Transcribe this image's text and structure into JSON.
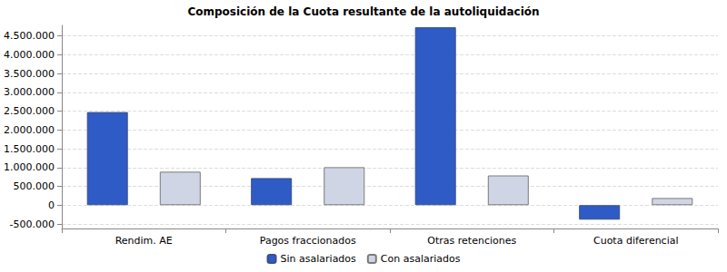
{
  "chart_data": {
    "type": "bar",
    "title": "Composición de la Cuota resultante de la autoliquidación",
    "categories": [
      "Rendim. AE",
      "Pagos fraccionados",
      "Otras retenciones",
      "Cuota diferencial"
    ],
    "series": [
      {
        "name": "Sin asalariados",
        "color": "#2f5bc6",
        "values": [
          2475000,
          720000,
          4730000,
          -385000
        ]
      },
      {
        "name": "Con asalariados",
        "color": "#d0d5e6",
        "values": [
          890000,
          1010000,
          790000,
          190000
        ]
      }
    ],
    "ylim": [
      -620000,
      4780000
    ],
    "yticks": [
      {
        "value": -500000,
        "label": "-500.000"
      },
      0,
      {
        "value": 500000,
        "label": "500.000"
      },
      {
        "value": 1000000,
        "label": "1.000.000"
      },
      {
        "value": 1500000,
        "label": "1.500.000"
      },
      {
        "value": 2000000,
        "label": "2.000.000"
      },
      {
        "value": 2500000,
        "label": "2.500.000"
      },
      {
        "value": 3000000,
        "label": "3.000.000"
      },
      {
        "value": 3500000,
        "label": "3.500.000"
      },
      {
        "value": 4000000,
        "label": "4.000.000"
      },
      {
        "value": 4500000,
        "label": "4.500.000"
      }
    ],
    "grid": true,
    "legend": "bottom"
  }
}
